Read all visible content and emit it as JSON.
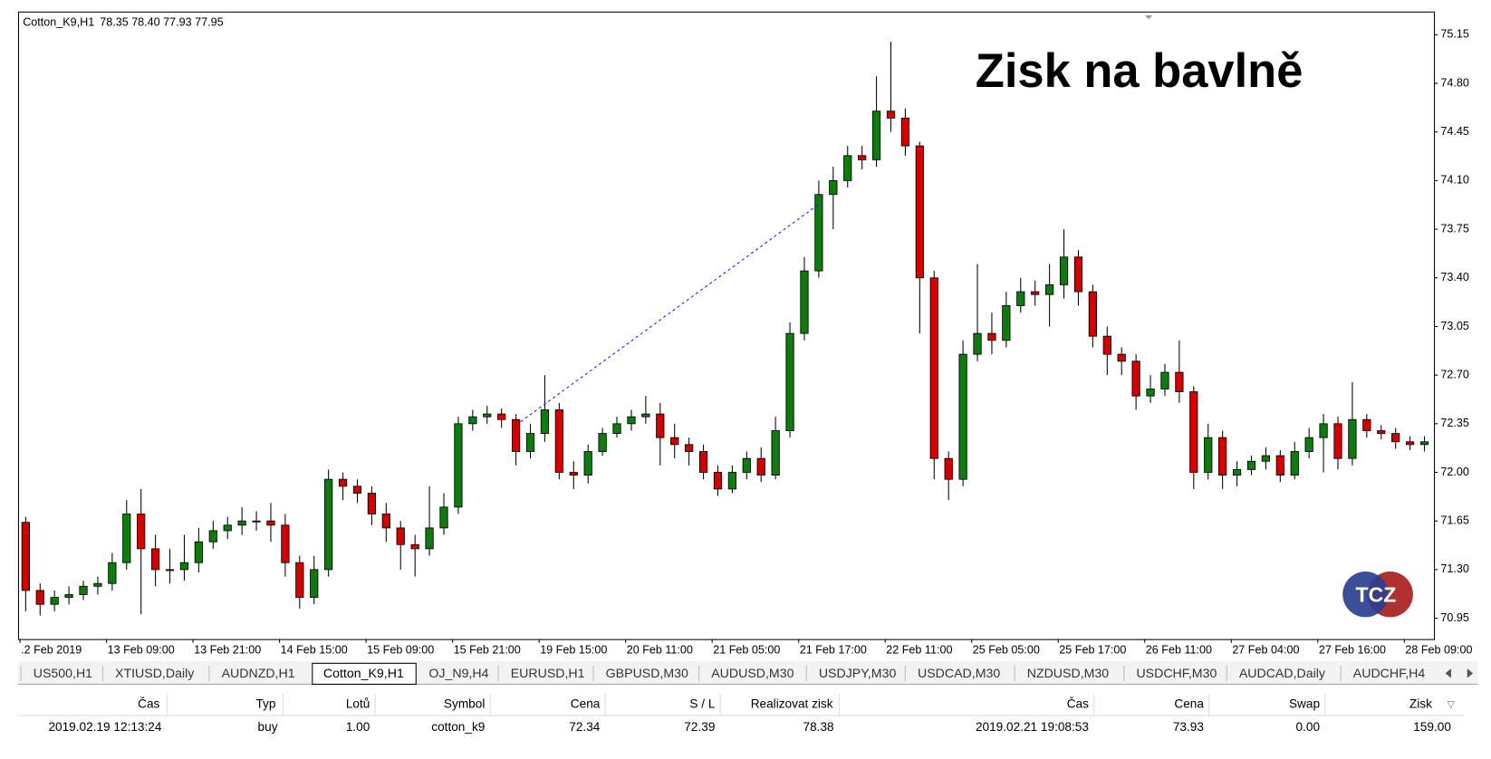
{
  "chart_data": {
    "type": "candlestick",
    "symbol": "Cotton_K9,H1",
    "header_text": "78.35 78.40 77.93 77.95",
    "title": "Zisk na bavlně",
    "logo": "TCZ",
    "up_color": "#0f7a0f",
    "down_color": "#d40000",
    "categories": [
      ".2 Feb 2019",
      null,
      null,
      null,
      null,
      null,
      "13 Feb 09:00",
      null,
      null,
      null,
      null,
      null,
      "13 Feb 21:00",
      null,
      null,
      null,
      null,
      null,
      "14 Feb 15:00",
      null,
      null,
      null,
      null,
      null,
      "15 Feb 09:00",
      null,
      null,
      null,
      null,
      null,
      "15 Feb 21:00",
      null,
      null,
      null,
      null,
      null,
      "19 Feb 15:00",
      null,
      null,
      null,
      null,
      null,
      "20 Feb 11:00",
      null,
      null,
      null,
      null,
      null,
      "21 Feb 05:00",
      null,
      null,
      null,
      null,
      null,
      "21 Feb 17:00",
      null,
      null,
      null,
      null,
      null,
      "22 Feb 11:00",
      null,
      null,
      null,
      null,
      null,
      "25 Feb 05:00",
      null,
      null,
      null,
      null,
      null,
      "25 Feb 17:00",
      null,
      null,
      null,
      null,
      null,
      "26 Feb 11:00",
      null,
      null,
      null,
      null,
      null,
      "27 Feb 04:00",
      null,
      null,
      null,
      null,
      null,
      "27 Feb 16:00",
      null,
      null,
      null,
      null,
      null,
      "28 Feb 09:00",
      null
    ],
    "open": [
      71.64,
      71.15,
      71.05,
      71.1,
      71.12,
      71.18,
      71.2,
      71.35,
      71.7,
      71.45,
      71.3,
      71.3,
      71.35,
      71.5,
      71.58,
      71.62,
      71.65,
      71.65,
      71.62,
      71.35,
      71.1,
      71.3,
      71.95,
      71.9,
      71.85,
      71.7,
      71.6,
      71.48,
      71.45,
      71.6,
      71.75,
      72.35,
      72.4,
      72.42,
      72.38,
      72.15,
      72.28,
      72.45,
      72.0,
      71.98,
      72.15,
      72.28,
      72.35,
      72.4,
      72.42,
      72.25,
      72.2,
      72.15,
      72.0,
      71.88,
      72.0,
      72.1,
      71.98,
      72.3,
      73.0,
      73.45,
      74.0,
      74.1,
      74.28,
      74.25,
      74.6,
      74.55,
      74.35,
      73.4,
      72.1,
      71.95,
      72.85,
      73.0,
      72.95,
      73.2,
      73.3,
      73.28,
      73.35,
      73.55,
      73.3,
      72.98,
      72.85,
      72.8,
      72.55,
      72.6,
      72.72,
      72.58,
      72.0,
      72.25,
      71.98,
      72.02,
      72.08,
      72.12,
      71.98,
      72.15,
      72.25,
      72.35,
      72.1,
      72.38,
      72.3,
      72.28,
      72.22,
      72.2
    ],
    "high": [
      71.68,
      71.2,
      71.15,
      71.18,
      71.22,
      71.25,
      71.42,
      71.8,
      71.88,
      71.55,
      71.45,
      71.55,
      71.6,
      71.65,
      71.68,
      71.75,
      71.72,
      71.78,
      71.7,
      71.4,
      71.4,
      72.02,
      72.0,
      71.95,
      71.9,
      71.78,
      71.65,
      71.55,
      71.9,
      71.85,
      72.4,
      72.45,
      72.48,
      72.46,
      72.42,
      72.35,
      72.7,
      72.5,
      72.08,
      72.2,
      72.32,
      72.4,
      72.45,
      72.55,
      72.5,
      72.35,
      72.25,
      72.2,
      72.05,
      72.05,
      72.15,
      72.18,
      72.4,
      73.08,
      73.55,
      74.1,
      74.2,
      74.35,
      74.35,
      74.85,
      75.1,
      74.62,
      74.38,
      73.45,
      72.15,
      72.95,
      73.5,
      73.15,
      73.3,
      73.4,
      73.38,
      73.5,
      73.75,
      73.6,
      73.35,
      73.05,
      72.9,
      72.85,
      72.7,
      72.78,
      72.95,
      72.62,
      72.35,
      72.3,
      72.08,
      72.12,
      72.18,
      72.16,
      72.22,
      72.32,
      72.42,
      72.4,
      72.65,
      72.42,
      72.34,
      72.32,
      72.26,
      72.26
    ],
    "low": [
      71.0,
      70.97,
      71.0,
      71.05,
      71.08,
      71.12,
      71.15,
      71.3,
      70.98,
      71.18,
      71.2,
      71.22,
      71.28,
      71.45,
      71.52,
      71.55,
      71.58,
      71.5,
      71.25,
      71.02,
      71.05,
      71.25,
      71.8,
      71.78,
      71.62,
      71.5,
      71.3,
      71.25,
      71.4,
      71.55,
      71.7,
      72.3,
      72.35,
      72.32,
      72.05,
      72.1,
      72.22,
      71.95,
      71.88,
      71.92,
      72.12,
      72.25,
      72.3,
      72.35,
      72.05,
      72.1,
      72.05,
      71.95,
      71.83,
      71.85,
      71.95,
      71.93,
      71.95,
      72.25,
      72.95,
      73.4,
      73.75,
      74.05,
      74.18,
      74.2,
      74.45,
      74.28,
      73.0,
      71.95,
      71.8,
      71.9,
      72.8,
      72.85,
      72.9,
      73.15,
      73.2,
      73.05,
      73.25,
      73.2,
      72.9,
      72.7,
      72.7,
      72.45,
      72.5,
      72.55,
      72.5,
      71.88,
      71.95,
      71.88,
      71.9,
      71.98,
      72.02,
      71.93,
      71.95,
      72.1,
      72.0,
      72.02,
      72.05,
      72.25,
      72.24,
      72.17,
      72.16,
      72.15
    ],
    "close": [
      71.15,
      71.05,
      71.1,
      71.12,
      71.18,
      71.2,
      71.35,
      71.7,
      71.45,
      71.3,
      71.3,
      71.35,
      71.5,
      71.58,
      71.62,
      71.65,
      71.65,
      71.62,
      71.35,
      71.1,
      71.3,
      71.95,
      71.9,
      71.85,
      71.7,
      71.6,
      71.48,
      71.45,
      71.6,
      71.75,
      72.35,
      72.4,
      72.42,
      72.38,
      72.15,
      72.28,
      72.45,
      72.0,
      71.98,
      72.15,
      72.28,
      72.35,
      72.4,
      72.42,
      72.25,
      72.2,
      72.15,
      72.0,
      71.88,
      72.0,
      72.1,
      71.98,
      72.3,
      73.0,
      73.45,
      74.0,
      74.1,
      74.28,
      74.25,
      74.6,
      74.55,
      74.35,
      73.4,
      72.1,
      71.95,
      72.85,
      73.0,
      72.95,
      73.2,
      73.3,
      73.28,
      73.35,
      73.55,
      73.3,
      72.98,
      72.85,
      72.8,
      72.55,
      72.6,
      72.72,
      72.58,
      72.0,
      72.25,
      71.98,
      72.02,
      72.08,
      72.12,
      71.98,
      72.15,
      72.25,
      72.35,
      72.1,
      72.38,
      72.3,
      72.28,
      72.22,
      72.2,
      72.22
    ],
    "ylim": [
      70.8,
      75.31
    ],
    "yticks": [
      70.95,
      {
        "value": 71.3,
        "label": "71.30"
      },
      71.65,
      {
        "value": 72.0,
        "label": "72.00"
      },
      72.35,
      {
        "value": 72.7,
        "label": "72.70"
      },
      73.05,
      {
        "value": 73.4,
        "label": "73.40"
      },
      73.75,
      {
        "value": 74.1,
        "label": "74.10"
      },
      74.45,
      {
        "value": 74.8,
        "label": "74.80"
      },
      75.15
    ]
  },
  "tabs": [
    "US500,H1",
    "XTIUSD,Daily",
    "AUDNZD,H1",
    "Cotton_K9,H1",
    "OJ_N9,H4",
    "EURUSD,H1",
    "GBPUSD,M30",
    "AUDUSD,M30",
    "USDJPY,M30",
    "USDCAD,M30",
    "NZDUSD,M30",
    "USDCHF,M30",
    "AUDCAD,Daily",
    "AUDCHF,H4"
  ],
  "table": {
    "header": [
      "Čas",
      "Typ",
      "Lotů",
      "Symbol",
      "Cena",
      "S / L",
      "Realizovat zisk",
      "Čas",
      "Cena",
      "Swap",
      "Zisk"
    ],
    "rows": [
      [
        "2019.02.19 12:13:24",
        "buy",
        "1.00",
        "cotton_k9",
        "72.34",
        "72.39",
        "78.38",
        "2019.02.21 19:08:53",
        "73.93",
        "0.00",
        "159.00"
      ]
    ]
  }
}
